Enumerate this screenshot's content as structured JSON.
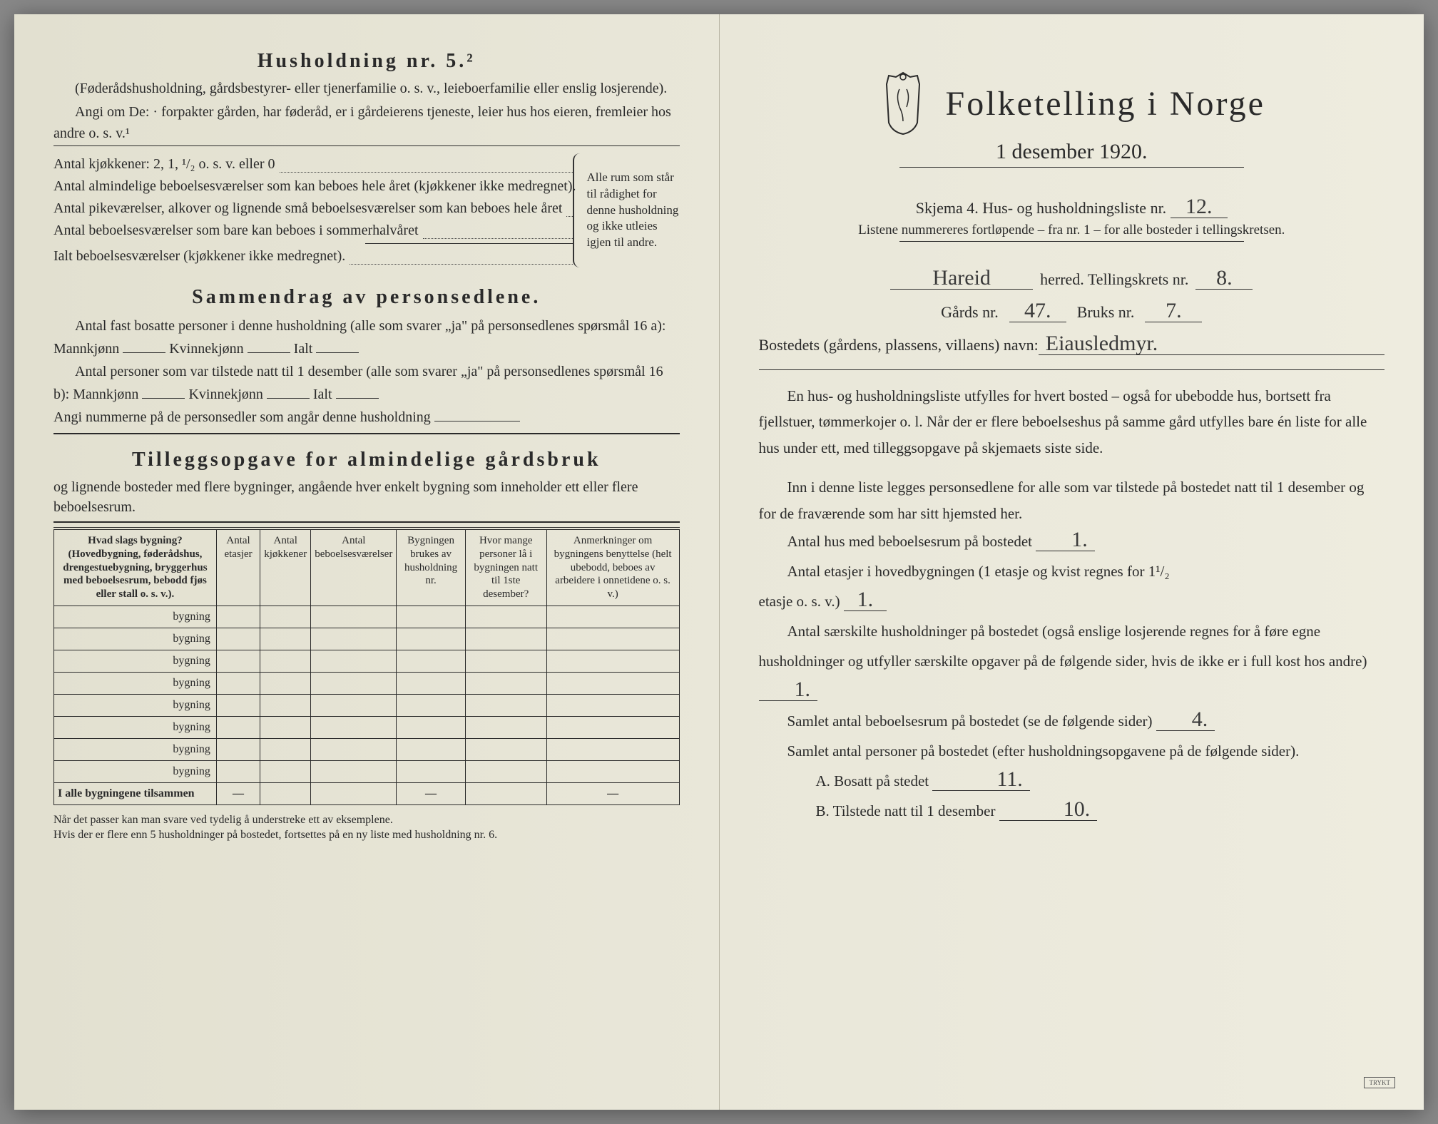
{
  "left": {
    "section5_title": "Husholdning nr. 5.²",
    "section5_sub": "(Føderådshusholdning, gårdsbestyrer- eller tjenerfamilie o. s. v., leieboerfamilie eller enslig losjerende).",
    "section5_instr": "Angi om De: · forpakter gården, har føderåd, er i gårdeierens tjeneste, leier hus hos eieren, fremleier hos andre o. s. v.¹",
    "kjokken_label": "Antal kjøkkener: 2, 1, ¹/₂ o. s. v. eller 0",
    "rooms1": "Antal almindelige beboelsesværelser som kan beboes hele året (kjøkkener ikke medregnet).",
    "rooms2": "Antal pikeværelser, alkover og lignende små beboelsesværelser som kan beboes hele året",
    "rooms3": "Antal beboelsesværelser som bare kan beboes i sommerhalvåret",
    "rooms_total": "Ialt beboelsesværelser  (kjøkkener ikke medregnet).",
    "brace_note": "Alle rum som står til rådighet for denne husholdning og ikke utleies igjen til andre.",
    "summary_title": "Sammendrag av personsedlene.",
    "summary1a": "Antal fast bosatte personer i denne husholdning (alle som svarer „ja\" på personsedlenes spørsmål 16 a): Mannkjønn",
    "summary1b": "Kvinnekjønn",
    "summary1c": "Ialt",
    "summary2": "Antal personer som var tilstede natt til 1 desember (alle som svarer „ja\" på personsedlenes spørsmål 16 b): Mannkjønn",
    "summary3": "Angi nummerne på de personsedler som angår denne husholdning",
    "tillegg_title": "Tilleggsopgave for almindelige gårdsbruk",
    "tillegg_sub": "og lignende bosteder med flere bygninger, angående hver enkelt bygning som inneholder ett eller flere beboelsesrum.",
    "col1": "Hvad slags bygning?\n(Hovedbygning, føderådshus, drengestuebygning, bryggerhus med beboelsesrum, bebodd fjøs eller stall o. s. v.).",
    "col2": "Antal etasjer",
    "col3": "Antal kjøkkener",
    "col4": "Antal beboelsesværelser",
    "col5": "Bygningen brukes av husholdning nr.",
    "col6": "Hvor mange personer lå i bygningen natt til 1ste desember?",
    "col7": "Anmerkninger om bygningens benyttelse (helt ubebodd, beboes av arbeidere i onnetidene o. s. v.)",
    "row_suffix": "bygning",
    "totals_label": "I alle bygningene tilsammen",
    "dash": "—",
    "footnote": "Når det passer kan man svare ved tydelig å understreke ett av eksemplene.\nHvis der er flere enn 5 husholdninger på bostedet, fortsettes på en ny liste med husholdning nr. 6."
  },
  "right": {
    "title": "Folketelling i Norge",
    "date": "1 desember 1920.",
    "skjema": "Skjema 4.  Hus- og husholdningsliste nr.",
    "skjema_nr": "12.",
    "subline": "Listene nummereres fortløpende – fra nr. 1 – for alle bosteder i tellingskretsen.",
    "herred_val": "Hareid",
    "herred_label": "herred.   Tellingskrets nr.",
    "krets_nr": "8.",
    "gards_label": "Gårds nr.",
    "gards_nr": "47.",
    "bruks_label": "Bruks nr.",
    "bruks_nr": "7.",
    "bosted_label": "Bostedets (gårdens, plassens, villaens) navn:",
    "bosted_val": "Eiausledmyr.",
    "para1": "En hus- og husholdningsliste utfylles for hvert bosted – også for ubebodde hus, bortsett fra fjellstuer, tømmerkojer o. l.  Når der er flere beboelseshus på samme gård utfylles bare én liste for alle hus under ett, med tilleggsopgave på skjemaets siste side.",
    "para2": "Inn i denne liste legges personsedlene for alle som var tilstede på bostedet natt til 1 desember og for de fraværende som har sitt hjemsted her.",
    "q1": "Antal hus med beboelsesrum på bostedet",
    "q1_val": "1.",
    "q2a": "Antal etasjer i hovedbygningen (1 etasje og kvist regnes for 1¹/₂",
    "q2b": "etasje o. s. v.)",
    "q2_val": "1.",
    "q3": "Antal særskilte husholdninger på bostedet (også enslige losjerende regnes for å føre egne husholdninger og utfyller særskilte opgaver på de følgende sider, hvis de ikke er i full kost hos andre)",
    "q3_val": "1.",
    "q4": "Samlet antal beboelsesrum på bostedet (se de følgende sider)",
    "q4_val": "4.",
    "q5": "Samlet antal personer på bostedet (efter husholdningsopgavene på de følgende sider).",
    "qA": "A.  Bosatt på stedet",
    "qA_val": "11.",
    "qB": "B.  Tilstede natt til 1 desember",
    "qB_val": "10.",
    "stamp": "TRYKT"
  },
  "colors": {
    "paper": "#e8e6d8",
    "ink": "#2a2a2a",
    "hand": "#3a3a3a"
  }
}
